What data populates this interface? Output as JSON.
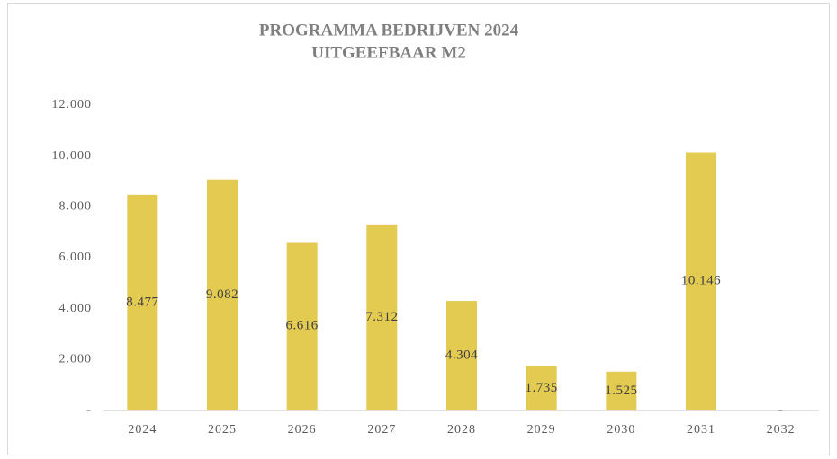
{
  "chart_data": {
    "type": "bar",
    "title": "PROGRAMMA BEDRIJVEN 2024",
    "subtitle": "UITGEEFBAAR M2",
    "categories": [
      "2024",
      "2025",
      "2026",
      "2027",
      "2028",
      "2029",
      "2030",
      "2031",
      "2032"
    ],
    "values": [
      8477,
      9082,
      6616,
      7312,
      4304,
      1735,
      1525,
      10146,
      0
    ],
    "value_labels": [
      "8.477",
      "9.082",
      "6.616",
      "7.312",
      "4.304",
      "1.735",
      "1.525",
      "10.146",
      "-"
    ],
    "color": "#e3cb52",
    "ylim": [
      0,
      12000
    ],
    "yticks": [
      {
        "value": 0,
        "label": "-"
      },
      {
        "value": 2000,
        "label": "2.000"
      },
      {
        "value": 4000,
        "label": "4.000"
      },
      {
        "value": 6000,
        "label": "6.000"
      },
      {
        "value": 8000,
        "label": "8.000"
      },
      {
        "value": 10000,
        "label": "10.000"
      },
      {
        "value": 12000,
        "label": "12.000"
      }
    ],
    "grid": false
  }
}
